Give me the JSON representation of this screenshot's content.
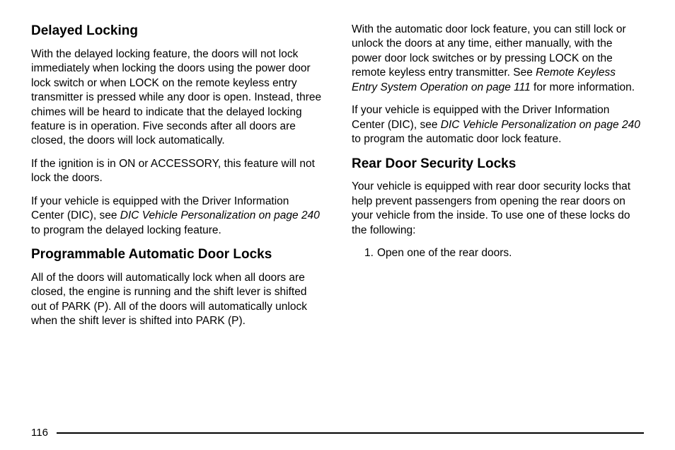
{
  "page_number": "116",
  "left_column": {
    "section1": {
      "heading": "Delayed Locking",
      "p1": "With the delayed locking feature, the doors will not lock immediately when locking the doors using the power door lock switch or when LOCK on the remote keyless entry transmitter is pressed while any door is open. Instead, three chimes will be heard to indicate that the delayed locking feature is in operation. Five seconds after all doors are closed, the doors will lock automatically.",
      "p2": "If the ignition is in ON or ACCESSORY, this feature will not lock the doors.",
      "p3_part1": "If your vehicle is equipped with the Driver Information Center (DIC), see ",
      "p3_link": "DIC Vehicle Personalization on page 240",
      "p3_part2": " to program the delayed locking feature."
    },
    "section2": {
      "heading": "Programmable Automatic Door Locks",
      "p1": "All of the doors will automatically lock when all doors are closed, the engine is running and the shift lever is shifted out of PARK (P). All of the doors will automatically unlock when the shift lever is shifted into PARK (P)."
    }
  },
  "right_column": {
    "p1_part1": "With the automatic door lock feature, you can still lock or unlock the doors at any time, either manually, with the power door lock switches or by pressing LOCK on the remote keyless entry transmitter. See ",
    "p1_link": "Remote Keyless Entry System Operation on page 111",
    "p1_part2": " for more information.",
    "p2_part1": "If your vehicle is equipped with the Driver Information Center (DIC), see ",
    "p2_link": "DIC Vehicle Personalization on page 240",
    "p2_part2": " to program the automatic door lock feature.",
    "section3": {
      "heading": "Rear Door Security Locks",
      "p1": "Your vehicle is equipped with rear door security locks that help prevent passengers from opening the rear doors on your vehicle from the inside. To use one of these locks do the following:",
      "step1_num": "1.",
      "step1": "Open one of the rear doors."
    }
  }
}
